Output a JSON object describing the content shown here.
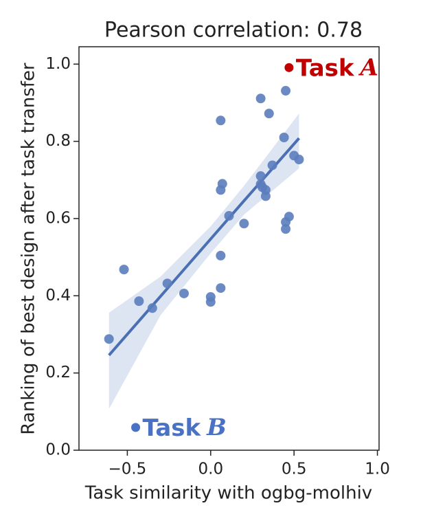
{
  "chart_data": {
    "type": "scatter",
    "title": "Pearson correlation: 0.78",
    "x_label": "Task similarity with ogbg-molhiv",
    "y_label": "Ranking of best design after task transfer",
    "color": "#5b7dbe",
    "x": [
      -0.61,
      -0.52,
      -0.43,
      -0.35,
      -0.26,
      -0.16,
      0.0,
      0.0,
      0.06,
      0.06,
      0.06,
      0.06,
      0.07,
      0.11,
      0.2,
      0.3,
      0.3,
      0.3,
      0.31,
      0.33,
      0.33,
      0.35,
      0.37,
      0.44,
      0.45,
      0.45,
      0.45,
      0.47,
      0.5,
      0.53
    ],
    "y": [
      0.288,
      0.468,
      0.386,
      0.368,
      0.432,
      0.406,
      0.397,
      0.384,
      0.42,
      0.504,
      0.854,
      0.674,
      0.69,
      0.607,
      0.587,
      0.911,
      0.71,
      0.689,
      0.681,
      0.674,
      0.658,
      0.872,
      0.738,
      0.81,
      0.931,
      0.591,
      0.573,
      0.605,
      0.763,
      0.753
    ],
    "fit": {
      "color": "#4a6fb3",
      "band_color": "#c7d4eb",
      "x": [
        -0.61,
        -0.3,
        0.0,
        0.2,
        0.53
      ],
      "y": [
        0.246,
        0.399,
        0.547,
        0.646,
        0.808
      ],
      "lower": [
        0.107,
        0.35,
        0.51,
        0.61,
        0.73
      ],
      "upper": [
        0.356,
        0.45,
        0.58,
        0.685,
        0.872
      ]
    },
    "annotations": [
      {
        "label": "Task",
        "letter": "A",
        "x": 0.47,
        "y": 0.991,
        "color": "#c00000"
      },
      {
        "label": "Task",
        "letter": "B",
        "x": -0.45,
        "y": 0.059,
        "color": "#4a72c4"
      }
    ],
    "xlim": [
      -0.79,
      1.01
    ],
    "ylim": [
      0,
      1.045
    ],
    "xticks": [
      {
        "value": -0.5,
        "label": "−0.5"
      },
      {
        "value": 0,
        "label": "0.0"
      },
      {
        "value": 0.5,
        "label": "0.5"
      },
      {
        "value": 1,
        "label": "1.0"
      }
    ],
    "yticks": [
      {
        "value": 0,
        "label": "0.0"
      },
      0.2,
      0.4,
      0.6,
      0.8,
      {
        "value": 1,
        "label": "1.0"
      }
    ]
  }
}
